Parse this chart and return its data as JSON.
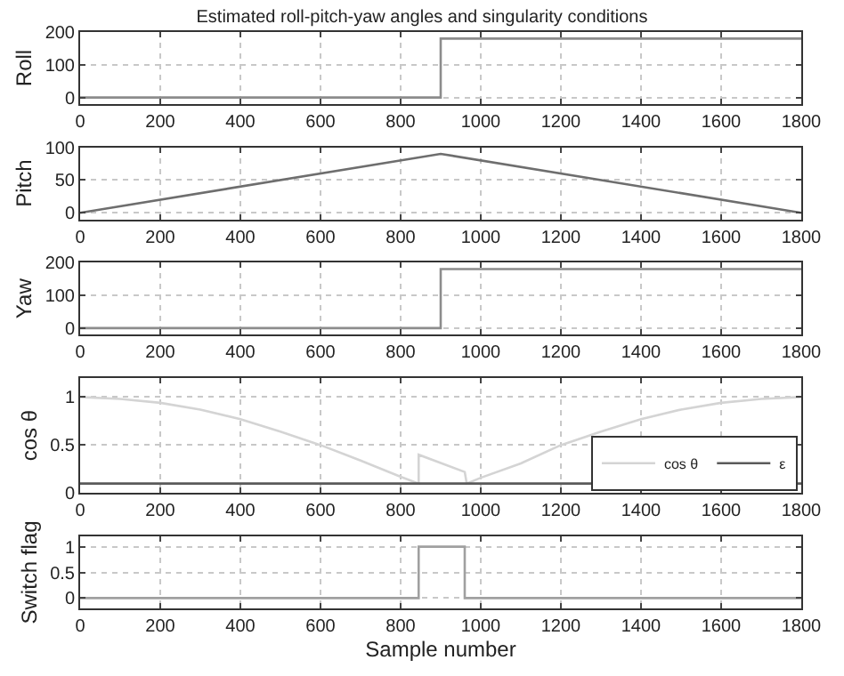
{
  "chart_data": [
    {
      "type": "line",
      "title": "Estimated roll-pitch-yaw angles and singularity conditions",
      "ylabel": "Roll",
      "x": [
        0,
        900,
        900,
        1800
      ],
      "xlim": [
        0,
        1800
      ],
      "xticks": [
        0,
        200,
        400,
        600,
        800,
        1000,
        1200,
        1400,
        1600,
        1800
      ],
      "ylim": [
        -20,
        200
      ],
      "yticks": [
        0,
        100,
        200
      ],
      "grid": true,
      "legend": false,
      "series": [
        {
          "color": "#8c8c8c",
          "values": [
            0,
            0,
            180,
            180
          ]
        }
      ]
    },
    {
      "type": "line",
      "ylabel": "Pitch",
      "x": [
        0,
        900,
        1800
      ],
      "xlim": [
        0,
        1800
      ],
      "xticks": [
        0,
        200,
        400,
        600,
        800,
        1000,
        1200,
        1400,
        1600,
        1800
      ],
      "ylim": [
        -10,
        100
      ],
      "yticks": [
        0,
        50,
        100
      ],
      "grid": true,
      "legend": false,
      "series": [
        {
          "color": "#6e6e6e",
          "values": [
            0,
            90,
            0
          ]
        }
      ]
    },
    {
      "type": "line",
      "ylabel": "Yaw",
      "x": [
        0,
        900,
        900,
        1800
      ],
      "xlim": [
        0,
        1800
      ],
      "xticks": [
        0,
        200,
        400,
        600,
        800,
        1000,
        1200,
        1400,
        1600,
        1800
      ],
      "ylim": [
        -20,
        200
      ],
      "yticks": [
        0,
        100,
        200
      ],
      "grid": true,
      "legend": false,
      "series": [
        {
          "color": "#8c8c8c",
          "values": [
            0,
            0,
            180,
            180
          ]
        }
      ]
    },
    {
      "type": "line",
      "ylabel": "cos θ",
      "xlim": [
        0,
        1800
      ],
      "xticks": [
        0,
        200,
        400,
        600,
        800,
        1000,
        1200,
        1400,
        1600,
        1800
      ],
      "ylim": [
        0,
        1.2
      ],
      "yticks": [
        0,
        0.5,
        1
      ],
      "grid": true,
      "legend": "right",
      "series": [
        {
          "name": "cos θ",
          "color": "#d4d4d4",
          "x": [
            0,
            100,
            200,
            300,
            400,
            500,
            600,
            700,
            800,
            845,
            845,
            960,
            965,
            1000,
            1100,
            1200,
            1300,
            1400,
            1500,
            1600,
            1700,
            1800
          ],
          "values": [
            1,
            0.98,
            0.94,
            0.87,
            0.77,
            0.64,
            0.5,
            0.34,
            0.17,
            0.1,
            0.4,
            0.22,
            0.1,
            0.16,
            0.31,
            0.5,
            0.64,
            0.77,
            0.87,
            0.94,
            0.98,
            1
          ]
        },
        {
          "name": "ε",
          "color": "#5a5a5a",
          "x": [
            0,
            1800
          ],
          "values": [
            0.1,
            0.1
          ]
        }
      ]
    },
    {
      "type": "line",
      "ylabel": "Switch flag",
      "xlabel": "Sample number",
      "x": [
        0,
        845,
        845,
        960,
        960,
        1800
      ],
      "xlim": [
        0,
        1800
      ],
      "xticks": [
        0,
        200,
        400,
        600,
        800,
        1000,
        1200,
        1400,
        1600,
        1800
      ],
      "ylim": [
        -0.2,
        1.2
      ],
      "yticks": [
        0,
        0.5,
        1
      ],
      "grid": true,
      "legend": false,
      "series": [
        {
          "color": "#a0a0a0",
          "values": [
            0,
            0,
            1,
            1,
            0,
            0
          ]
        }
      ]
    }
  ]
}
